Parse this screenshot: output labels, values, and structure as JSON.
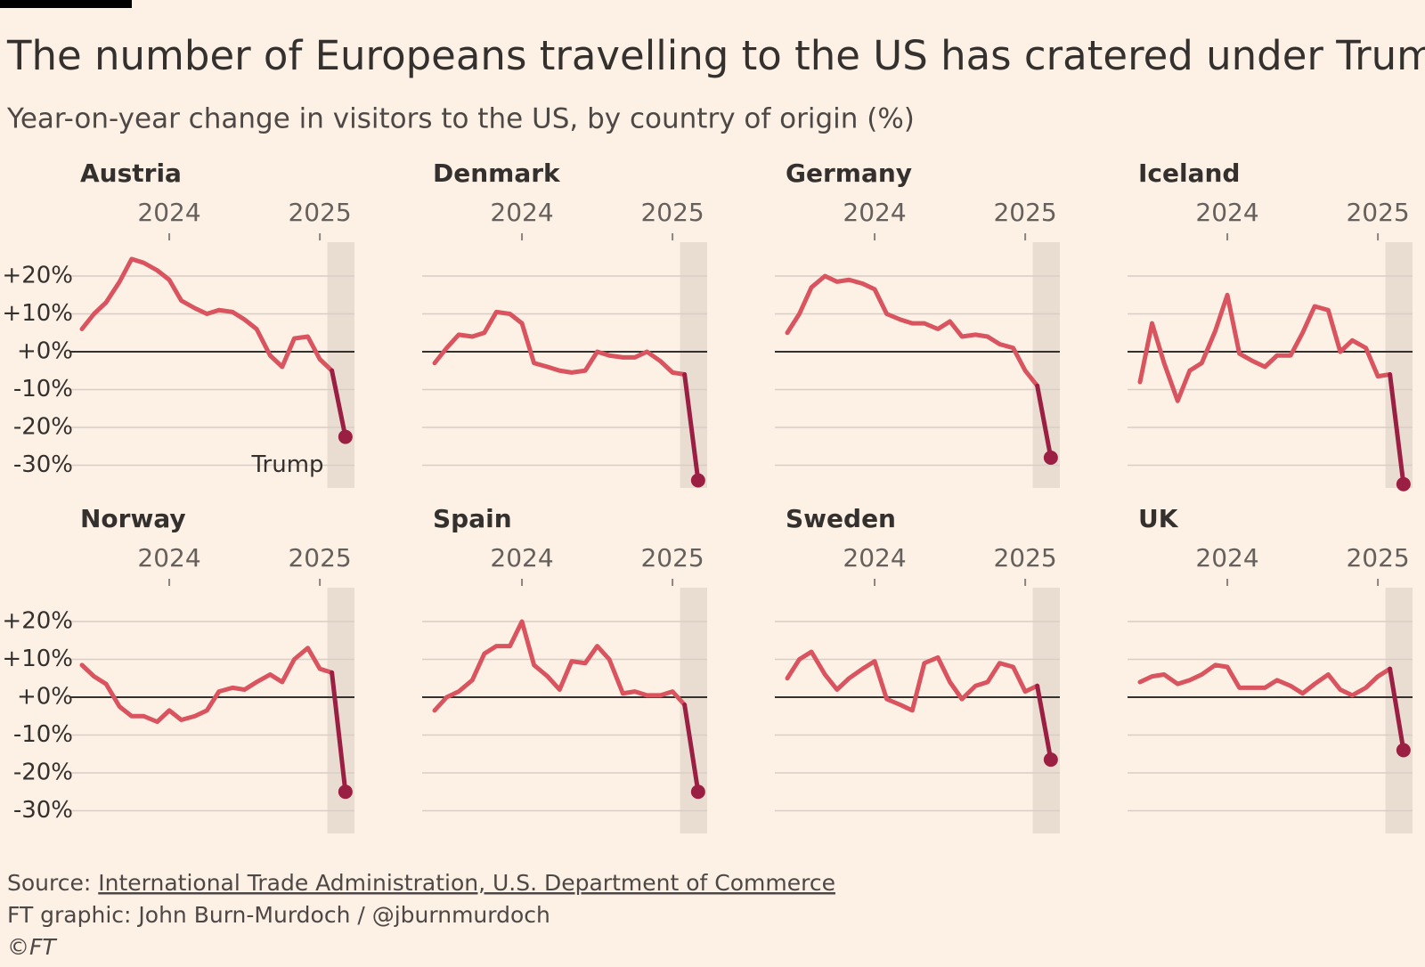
{
  "title": "The number of Europeans travelling to the US has cratered under Trump",
  "subtitle": "Year-on-year change in visitors to the US, by country of origin (%)",
  "source_label": "Source:",
  "source_link": "International Trade Administration, U.S. Department of Commerce",
  "credit": "FT graphic: John Burn-Murdoch / @jburnmurdoch",
  "copyright": "©FT",
  "axes": {
    "x": [
      2023.42,
      2023.5,
      2023.58,
      2023.67,
      2023.75,
      2023.83,
      2023.92,
      2024,
      2024.08,
      2024.17,
      2024.25,
      2024.33,
      2024.42,
      2024.5,
      2024.58,
      2024.67,
      2024.75,
      2024.83,
      2024.92,
      2025,
      2025.08,
      2025.17
    ],
    "xlim": [
      2023.42,
      2025.23
    ],
    "xticks": [
      2024,
      2025
    ],
    "ylim": [
      -36,
      28
    ],
    "yticks": [
      {
        "value": 20,
        "label": "+20%"
      },
      {
        "value": 10,
        "label": "+10%"
      },
      {
        "value": 0,
        "label": "+0%"
      },
      {
        "value": -10,
        "label": "-10%"
      },
      {
        "value": -20,
        "label": "-20%"
      },
      {
        "value": -30,
        "label": "-30%"
      }
    ],
    "highlight": [
      2025.05,
      2025.23
    ]
  },
  "colors": {
    "line": "#d9545f",
    "recent": "#9b1e43",
    "zero": "#33302e",
    "grid": "#d8cec6",
    "highlight": "#e9ddd2"
  },
  "chart_data": [
    {
      "type": "line",
      "title": "Austria",
      "values": [
        6,
        10,
        13,
        18.5,
        24.5,
        23.5,
        21.5,
        19,
        13.5,
        11.5,
        10,
        11,
        10.5,
        8.5,
        6,
        -1,
        -4,
        3.5,
        4,
        -2,
        -5,
        -22.5
      ],
      "annotation": "Trump"
    },
    {
      "type": "line",
      "title": "Denmark",
      "values": [
        -3,
        1,
        4.5,
        4,
        5,
        10.5,
        10,
        7.5,
        -3,
        -4,
        -5,
        -5.5,
        -5,
        0,
        -1,
        -1.5,
        -1.5,
        0,
        -2.5,
        -5.5,
        -6,
        -34
      ]
    },
    {
      "type": "line",
      "title": "Germany",
      "values": [
        5,
        10,
        17,
        20,
        18.5,
        19,
        18,
        16.5,
        10,
        8.5,
        7.5,
        7.5,
        6,
        8,
        4,
        4.5,
        4,
        2,
        1,
        -5,
        -9,
        -28
      ]
    },
    {
      "type": "line",
      "title": "Iceland",
      "values": [
        -8,
        7.5,
        -3,
        -13,
        -5,
        -3,
        5.5,
        15,
        -0.5,
        -2.5,
        -4,
        -1,
        -1,
        5,
        12,
        11,
        0,
        3,
        1,
        -6.5,
        -6,
        -35
      ]
    },
    {
      "type": "line",
      "title": "Norway",
      "values": [
        8.5,
        5.5,
        3.5,
        -2.5,
        -5,
        -5,
        -6.5,
        -3.5,
        -6,
        -5,
        -3.5,
        1.5,
        2.5,
        2,
        4,
        6,
        4,
        10,
        13,
        7.5,
        6.5,
        -25
      ]
    },
    {
      "type": "line",
      "title": "Spain",
      "values": [
        -3.5,
        0,
        1.5,
        4.5,
        11.5,
        13.5,
        13.5,
        20,
        8.5,
        5.5,
        2,
        9.5,
        9,
        13.5,
        10,
        1,
        1.5,
        0.5,
        0.5,
        1.5,
        -2,
        -25
      ]
    },
    {
      "type": "line",
      "title": "Sweden",
      "values": [
        5,
        10,
        12,
        6,
        2,
        5,
        7.5,
        9.5,
        -0.5,
        -2,
        -3.5,
        9,
        10.5,
        4,
        -0.5,
        3,
        4,
        9,
        8,
        1.5,
        3,
        -16.5
      ]
    },
    {
      "type": "line",
      "title": "UK",
      "values": [
        4,
        5.5,
        6,
        3.5,
        4.5,
        6,
        8.5,
        8,
        2.5,
        2.5,
        2.5,
        4.5,
        3,
        1,
        3.5,
        6,
        2,
        0.5,
        2.5,
        5.5,
        7.5,
        -14
      ]
    }
  ]
}
